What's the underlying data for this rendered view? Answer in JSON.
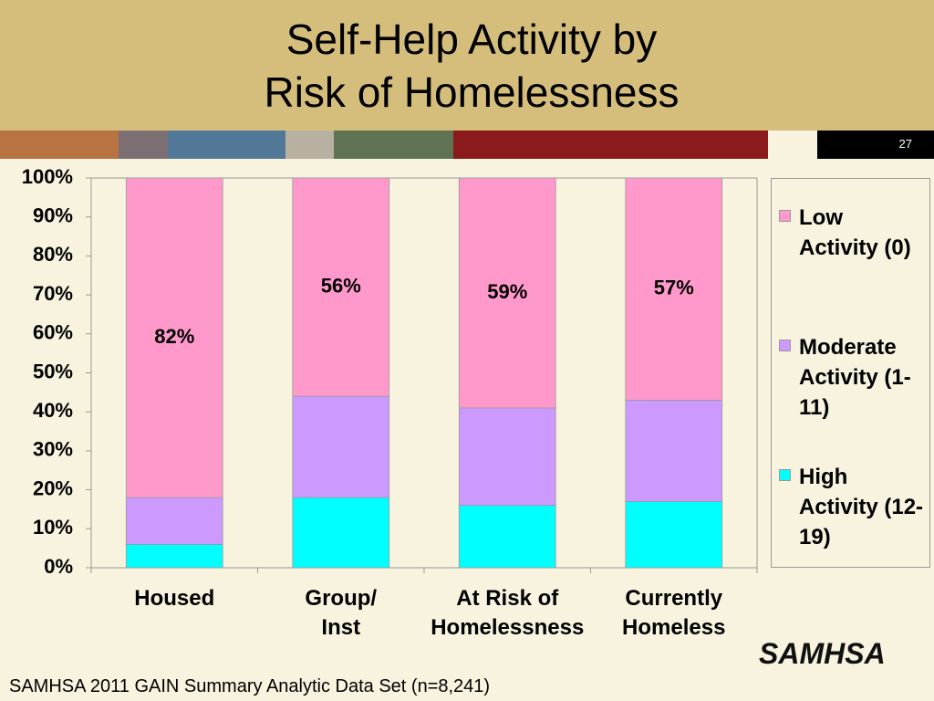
{
  "header": {
    "title": "Self-Help Activity by\nRisk of Homelessness",
    "slide_number": "27"
  },
  "chart_data": {
    "type": "stacked_bar",
    "categories": [
      "Housed",
      "Group/\nInst",
      "At Risk of\nHomelessness",
      "Currently\nHomeless"
    ],
    "series": [
      {
        "name": "Low Activity (0)",
        "color": "#ff99cc",
        "values": [
          82,
          56,
          59,
          57
        ],
        "value_labels": [
          "82%",
          "56%",
          "59%",
          "57%"
        ]
      },
      {
        "name": "Moderate Activity (1-11)",
        "color": "#cc99ff",
        "values": [
          12,
          26,
          25,
          26
        ]
      },
      {
        "name": "High Activity (12-19)",
        "color": "#00ffff",
        "values": [
          6,
          18,
          16,
          17
        ]
      }
    ],
    "ylim": [
      0,
      100
    ],
    "yticks": [
      {
        "value": 0,
        "label": "0%"
      },
      {
        "value": 10,
        "label": "10%"
      },
      {
        "value": 20,
        "label": "20%"
      },
      {
        "value": 30,
        "label": "30%"
      },
      {
        "value": 40,
        "label": "40%"
      },
      {
        "value": 50,
        "label": "50%"
      },
      {
        "value": 60,
        "label": "60%"
      },
      {
        "value": 70,
        "label": "70%"
      },
      {
        "value": 80,
        "label": "80%"
      },
      {
        "value": 90,
        "label": "90%"
      },
      {
        "value": 100,
        "label": "100%"
      }
    ],
    "grid": false,
    "legend": "right"
  },
  "footer": {
    "source": "SAMHSA 2011 GAIN Summary Analytic Data Set (n=8,241)",
    "logo": "SAMHSA"
  }
}
